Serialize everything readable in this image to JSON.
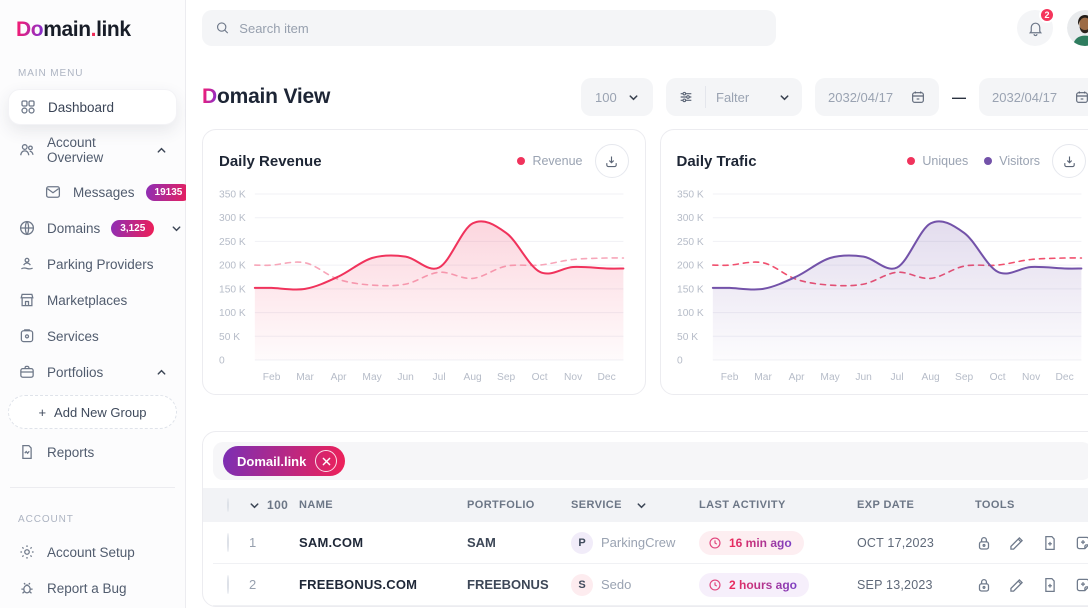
{
  "brand": {
    "accent": "Do",
    "mid": "main",
    "dot": ".",
    "tail": "link"
  },
  "topbar": {
    "search_placeholder": "Search item",
    "notification_count": "2"
  },
  "sidebar": {
    "main_menu_label": "MAIN MENU",
    "account_label": "ACCOUNT",
    "items": [
      {
        "label": "Dashboard"
      },
      {
        "label": "Account Overview"
      },
      {
        "label": "Messages",
        "badge": "19135"
      },
      {
        "label": "Domains",
        "badge": "3,125"
      },
      {
        "label": "Parking Providers"
      },
      {
        "label": "Marketplaces"
      },
      {
        "label": "Services"
      },
      {
        "label": "Portfolios"
      },
      {
        "plus": "+",
        "label": "Add New Group"
      },
      {
        "label": "Reports"
      }
    ],
    "account_items": [
      {
        "label": "Account Setup"
      },
      {
        "label": "Report a Bug"
      }
    ]
  },
  "header": {
    "title_accent": "D",
    "title_rest": "omain View",
    "per_page": "100",
    "filter_label": "Falter",
    "date_from": "2032/04/17",
    "date_separator": "—",
    "date_to": "2032/04/17"
  },
  "theme": {
    "accent_red": "#f0335c",
    "accent_purple": "#7352a9",
    "gradient_start": "#8d2fb6",
    "gradient_end": "#ef1e56"
  },
  "icons": {
    "search": "magnifier",
    "notification": "bell",
    "filter": "sliders",
    "date": "calendar",
    "download": "tray-arrow-down",
    "activity": "clock",
    "tools": [
      "lock",
      "pencil",
      "file-plus",
      "note-add"
    ]
  },
  "chart_data": [
    {
      "type": "area",
      "title": "Daily Revenue",
      "categories": [
        "Feb",
        "Mar",
        "Apr",
        "May",
        "Jun",
        "Jul",
        "Aug",
        "Sep",
        "Oct",
        "Nov",
        "Dec"
      ],
      "ylim": [
        0,
        350
      ],
      "unit": "K",
      "grid": true,
      "legend_position": "top-right",
      "yticks": [
        {
          "v": 350,
          "label": "350 K"
        },
        {
          "v": 300,
          "label": "300 K"
        },
        {
          "v": 250,
          "label": "250 K"
        },
        {
          "v": 200,
          "label": "200 K"
        },
        {
          "v": 150,
          "label": "150 K"
        },
        {
          "v": 100,
          "label": "100 K"
        },
        {
          "v": 50,
          "label": "50 K"
        },
        {
          "v": 0,
          "label": "0"
        }
      ],
      "legend": [
        {
          "label": "Revenue",
          "color": "#f0335c"
        }
      ],
      "series": [
        {
          "name": "Revenue (dashed)",
          "style": "dashed",
          "color": "#f7a6b9",
          "fill": false,
          "values": [
            200,
            205,
            170,
            158,
            160,
            185,
            172,
            198,
            200,
            212,
            215
          ]
        },
        {
          "name": "Revenue",
          "style": "solid",
          "color": "#f0335c",
          "fill": true,
          "values": [
            152,
            150,
            176,
            215,
            218,
            195,
            288,
            268,
            186,
            196,
            193
          ]
        }
      ]
    },
    {
      "type": "area",
      "title": "Daily Trafic",
      "categories": [
        "Feb",
        "Mar",
        "Apr",
        "May",
        "Jun",
        "Jul",
        "Aug",
        "Sep",
        "Oct",
        "Nov",
        "Dec"
      ],
      "ylim": [
        0,
        350
      ],
      "unit": "K",
      "grid": true,
      "legend_position": "top-right",
      "yticks": [
        {
          "v": 350,
          "label": "350 K"
        },
        {
          "v": 300,
          "label": "300 K"
        },
        {
          "v": 250,
          "label": "250 K"
        },
        {
          "v": 200,
          "label": "200 K"
        },
        {
          "v": 150,
          "label": "150 K"
        },
        {
          "v": 100,
          "label": "100 K"
        },
        {
          "v": 50,
          "label": "50 K"
        },
        {
          "v": 0,
          "label": "0"
        }
      ],
      "legend": [
        {
          "label": "Uniques",
          "color": "#f0335c"
        },
        {
          "label": "Visitors",
          "color": "#7352a9"
        }
      ],
      "series": [
        {
          "name": "Uniques",
          "style": "dashed",
          "color": "#f0506e",
          "fill": false,
          "values": [
            200,
            205,
            170,
            158,
            160,
            185,
            172,
            198,
            200,
            212,
            215
          ]
        },
        {
          "name": "Visitors",
          "style": "solid",
          "color": "#7352a9",
          "fill": true,
          "values": [
            152,
            150,
            176,
            215,
            218,
            195,
            288,
            268,
            186,
            196,
            193
          ]
        }
      ]
    }
  ],
  "table": {
    "chip_label": "Domail.link",
    "headers": {
      "count": "100",
      "name": "NAME",
      "portfolio": "PORTFOLIO",
      "service": "SERVICE",
      "last_activity": "LAST ACTIVITY",
      "exp_date": "EXP DATE",
      "tools": "TOOLS"
    },
    "rows": [
      {
        "num": "1",
        "name": "SAM.COM",
        "portfolio": "SAM",
        "service_initial": "P",
        "service": "ParkingCrew",
        "last_activity": "16 min ago",
        "exp_date": "OCT 17,2023"
      },
      {
        "num": "2",
        "name": "FREEBONUS.COM",
        "portfolio": "FREEBONUS",
        "service_initial": "S",
        "service": "Sedo",
        "last_activity": "2 hours ago",
        "exp_date": "SEP 13,2023"
      }
    ]
  }
}
